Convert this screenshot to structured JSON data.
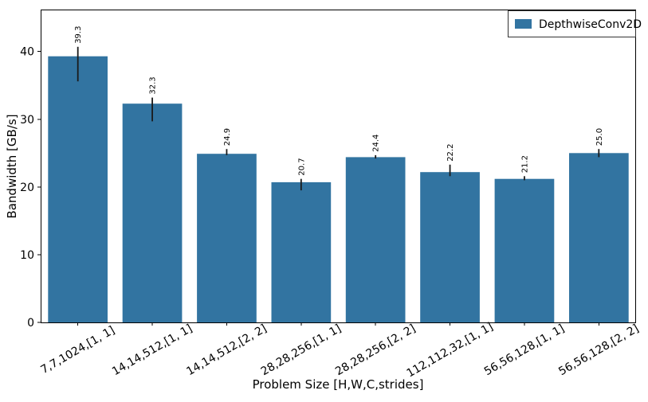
{
  "chart_data": {
    "type": "bar",
    "title": "",
    "xlabel": "Problem Size [H,W,C,strides]",
    "ylabel": "Bandwidth [GB/s]",
    "categories": [
      "7,7,1024,[1, 1]",
      "14,14,512,[1, 1]",
      "14,14,512,[2, 2]",
      "28,28,256,[1, 1]",
      "28,28,256,[2, 2]",
      "112,112,32,[1, 1]",
      "56,56,128,[1, 1]",
      "56,56,128,[2, 2]"
    ],
    "series": [
      {
        "name": "DepthwiseConv2D",
        "color": "#3274a1",
        "values": [
          39.3,
          32.3,
          24.9,
          20.7,
          24.4,
          22.2,
          21.2,
          25.0
        ],
        "bar_labels": [
          "39.3",
          "32.3",
          "24.9",
          "20.7",
          "24.4",
          "22.2",
          "21.2",
          "25.0"
        ],
        "error_low": [
          35.6,
          29.7,
          24.7,
          19.5,
          24.2,
          21.6,
          21.0,
          24.4
        ],
        "error_high": [
          40.7,
          33.2,
          25.6,
          21.2,
          24.7,
          23.3,
          21.6,
          25.6
        ]
      }
    ],
    "yticks": [
      0,
      10,
      20,
      30,
      40
    ],
    "ylim": [
      0,
      46.2
    ],
    "grid": false,
    "bar_width_fraction": 0.8,
    "legend": {
      "position": "upper right",
      "entries": [
        "DepthwiseConv2D"
      ]
    },
    "colors": {
      "bar": "#3274a1",
      "error_bar": "#1a1a1a",
      "axis": "#000000",
      "text": "#000000",
      "legend_border": "#333333",
      "background": "#ffffff"
    }
  }
}
